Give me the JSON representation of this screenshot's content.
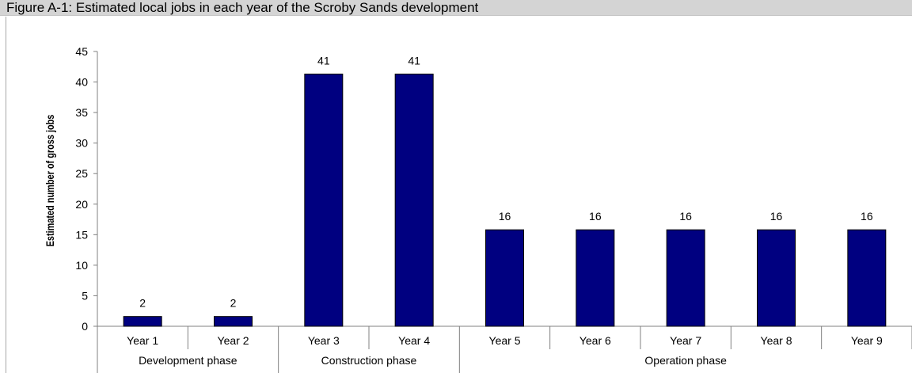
{
  "figure_title": "Figure A-1: Estimated local jobs in each year of the Scroby Sands development",
  "chart_data": {
    "type": "bar",
    "title": "Figure A-1: Estimated local jobs in each year of the Scroby Sands development",
    "xlabel": "",
    "ylabel": "Estimated number of gross jobs",
    "ylim": [
      0,
      45
    ],
    "yticks": [
      0,
      5,
      10,
      15,
      20,
      25,
      30,
      35,
      40,
      45
    ],
    "grid": false,
    "categories": [
      "Year 1",
      "Year 2",
      "Year 3",
      "Year 4",
      "Year 5",
      "Year 6",
      "Year 7",
      "Year 8",
      "Year 9"
    ],
    "values": [
      1.6,
      1.6,
      41.3,
      41.3,
      15.8,
      15.8,
      15.8,
      15.8,
      15.8
    ],
    "data_labels": [
      "2",
      "2",
      "41",
      "41",
      "16",
      "16",
      "16",
      "16",
      "16"
    ],
    "groups": [
      {
        "label": "Development phase",
        "categories": [
          "Year 1",
          "Year 2"
        ]
      },
      {
        "label": "Construction phase",
        "categories": [
          "Year 3",
          "Year 4"
        ]
      },
      {
        "label": "Operation phase",
        "categories": [
          "Year 5",
          "Year 6",
          "Year 7",
          "Year 8",
          "Year 9"
        ]
      }
    ],
    "colors": {
      "bar": "#000080",
      "bar_outline": "#000000",
      "axis": "#808080"
    }
  }
}
